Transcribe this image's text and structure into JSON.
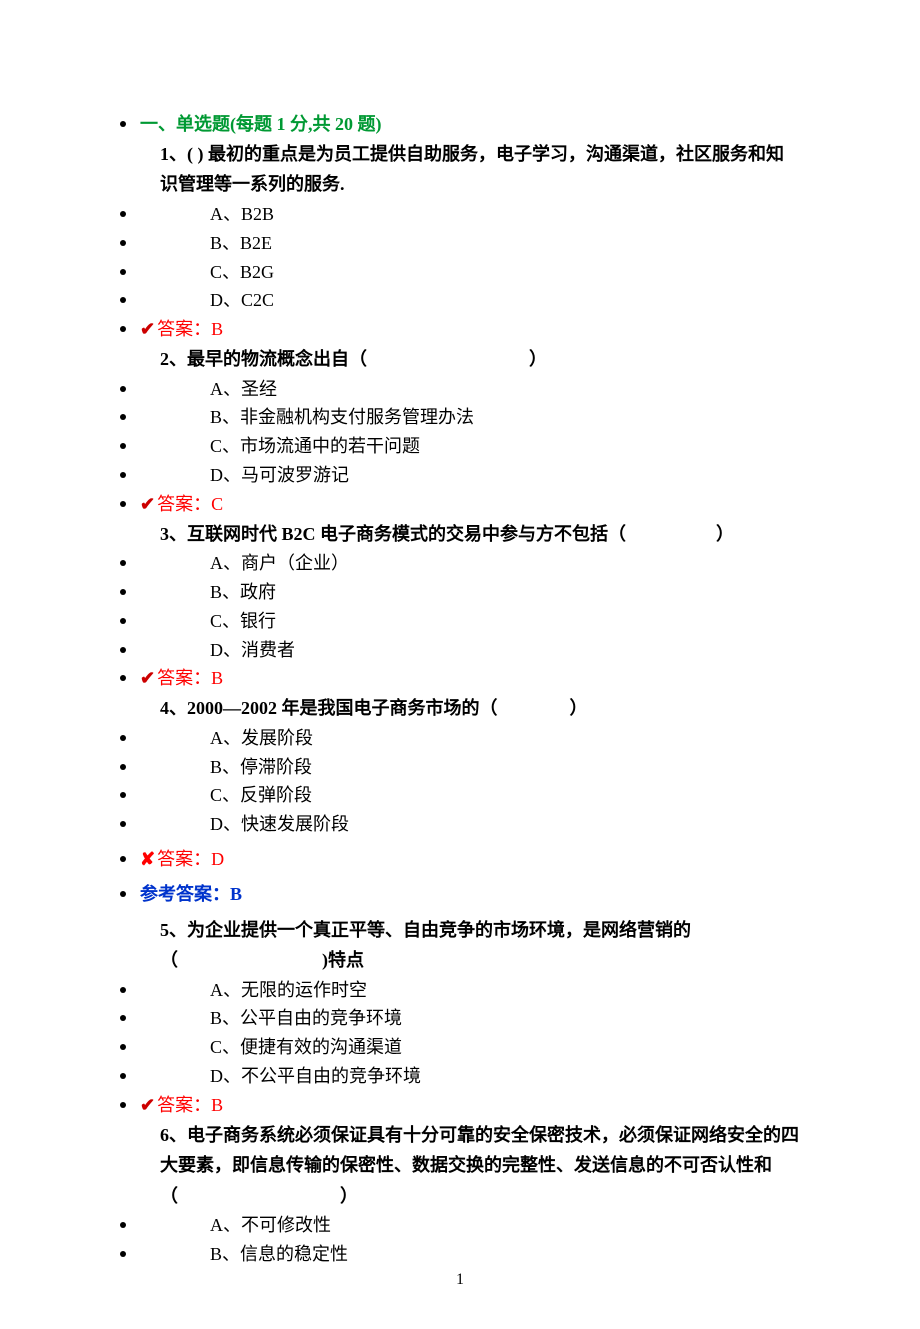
{
  "section_header": "一、单选题(每题 1 分,共 20 题)",
  "answer_label": "答案：",
  "ref_answer_label": "参考答案：",
  "check_mark": "✔",
  "cross_mark": "✘",
  "page_number": "1",
  "questions": [
    {
      "number": "1、",
      "text": "(  ) 最初的重点是为员工提供自助服务，电子学习，沟通渠道，社区服务和知识管理等一系列的服务.",
      "options": [
        "A、B2B",
        "B、B2E",
        "C、B2G",
        "D、C2C"
      ],
      "answer": "B",
      "status": "correct"
    },
    {
      "number": "2、",
      "text": "最早的物流概念出自（　　　　　　　　　）",
      "options": [
        "A、圣经",
        "B、非金融机构支付服务管理办法",
        "C、市场流通中的若干问题",
        "D、马可波罗游记"
      ],
      "answer": "C",
      "status": "correct"
    },
    {
      "number": "3、",
      "text": "互联网时代 B2C 电子商务模式的交易中参与方不包括（　　　　　）",
      "options": [
        "A、商户（企业）",
        "B、政府",
        "C、银行",
        "D、消费者"
      ],
      "answer": "B",
      "status": "correct"
    },
    {
      "number": "4、",
      "text": "2000—2002 年是我国电子商务市场的（　　　　）",
      "options": [
        "A、发展阶段",
        "B、停滞阶段",
        "C、反弹阶段",
        "D、快速发展阶段"
      ],
      "answer": "D",
      "status": "wrong",
      "ref_answer": "B"
    },
    {
      "number": "5、",
      "text": "为企业提供一个真正平等、自由竞争的市场环境，是网络营销的（　　　　　　　　)特点",
      "options": [
        "A、无限的运作时空",
        "B、公平自由的竞争环境",
        "C、便捷有效的沟通渠道",
        "D、不公平自由的竞争环境"
      ],
      "answer": "B",
      "status": "correct"
    },
    {
      "number": "6、",
      "text": "电子商务系统必须保证具有十分可靠的安全保密技术，必须保证网络安全的四大要素，即信息传输的保密性、数据交换的完整性、发送信息的不可否认性和（　　　　　　　　　）",
      "options": [
        "A、不可修改性",
        "B、信息的稳定性"
      ]
    }
  ]
}
